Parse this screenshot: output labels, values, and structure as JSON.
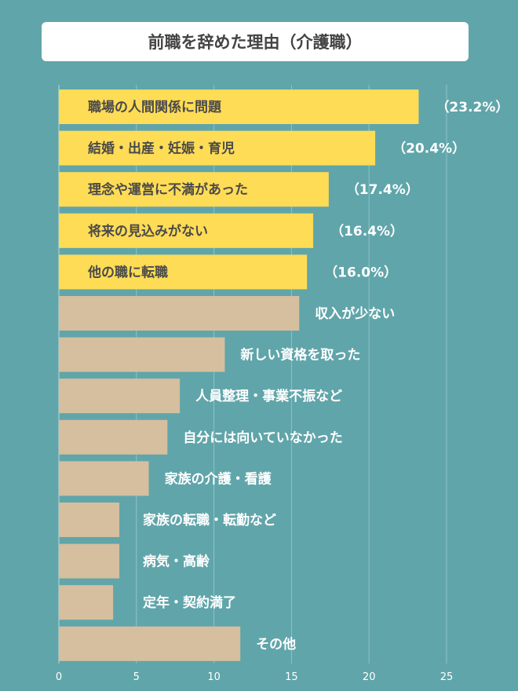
{
  "chart_data": {
    "type": "bar",
    "orientation": "horizontal",
    "title": "前職を辞めた理由（介護職）",
    "categories": [
      "職場の人間関係に問題",
      "結婚・出産・妊娠・育児",
      "理念や運営に不満があった",
      "将来の見込みがない",
      "他の職に転職",
      "収入が少ない",
      "新しい資格を取った",
      "人員整理・事業不振など",
      "自分には向いていなかった",
      "家族の介護・看護",
      "家族の転職・転勤など",
      "病気・高齢",
      "定年・契約満了",
      "その他"
    ],
    "values": [
      23.2,
      20.4,
      17.4,
      16.4,
      16.0,
      15.5,
      10.7,
      7.8,
      7.0,
      5.8,
      3.9,
      3.9,
      3.5,
      11.7
    ],
    "value_labels": [
      "（23.2%）",
      "（20.4%）",
      "（17.4%）",
      "（16.4%）",
      "（16.0%）",
      "",
      "",
      "",
      "",
      "",
      "",
      "",
      "",
      ""
    ],
    "highlight_count": 5,
    "xlim": [
      0,
      25
    ],
    "xticks": [
      "0",
      "5",
      "10",
      "15",
      "20",
      "25"
    ],
    "grid": true,
    "colors": {
      "highlight": "#ffdc55",
      "normal": "#d5bf9f",
      "background": "#60a5aa",
      "grid": "#8fc2c6",
      "label_dark": "#4a4a4a",
      "label_light": "#ffffff"
    }
  }
}
